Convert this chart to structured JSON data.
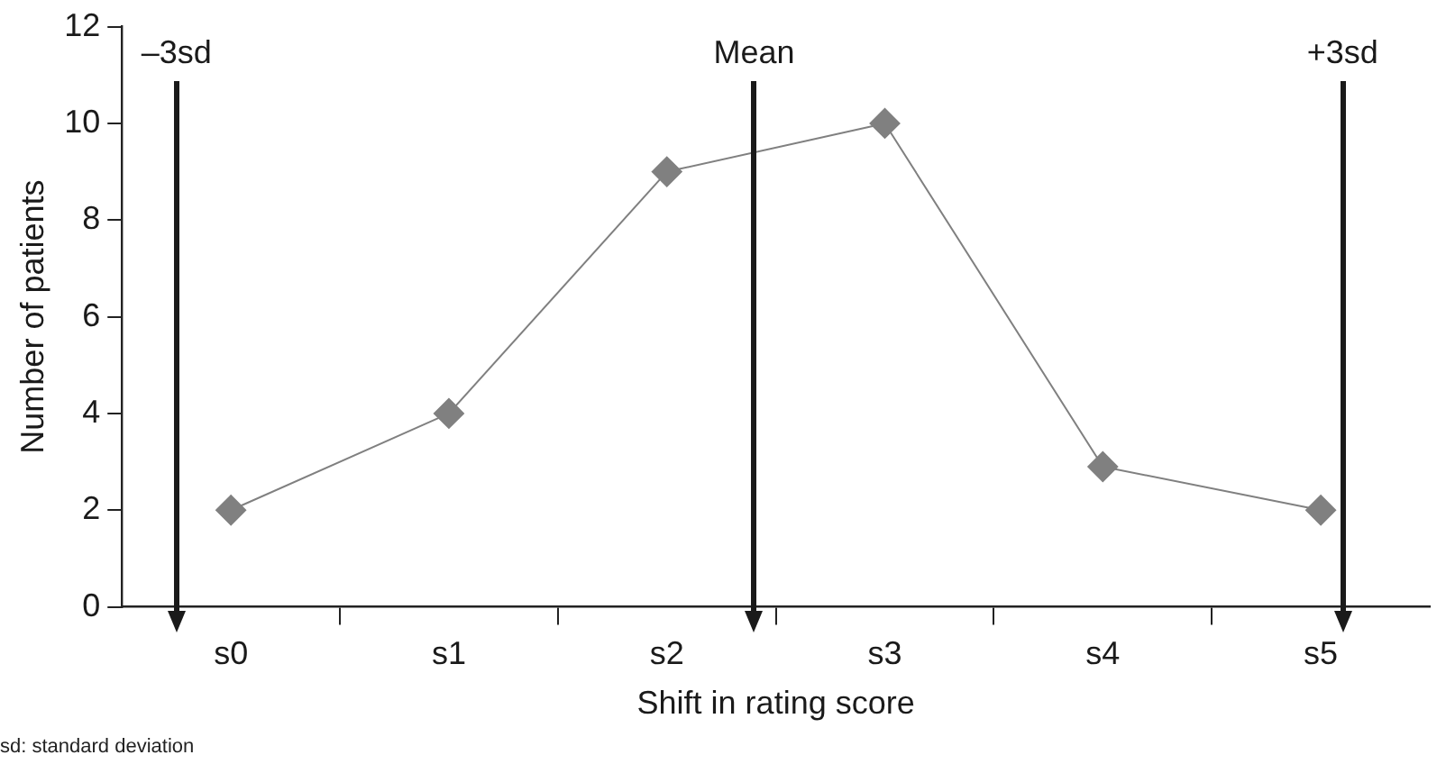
{
  "chart_data": {
    "type": "line",
    "xlabel": "Shift in rating score",
    "ylabel": "Number of patients",
    "categories": [
      "s0",
      "s1",
      "s2",
      "s3",
      "s4",
      "s5"
    ],
    "series": [
      {
        "color": "#808080",
        "values": [
          2,
          4,
          9,
          10,
          2.9,
          2
        ]
      }
    ],
    "ylim": [
      0,
      12
    ],
    "yticks": [
      0,
      2,
      4,
      6,
      8,
      10,
      12
    ],
    "annotations": [
      "–3sd",
      "Mean",
      "+3sd",
      "sd: standard deviation"
    ],
    "grid": false,
    "legend": false,
    "marker": "diamond",
    "line_style": "solid"
  }
}
